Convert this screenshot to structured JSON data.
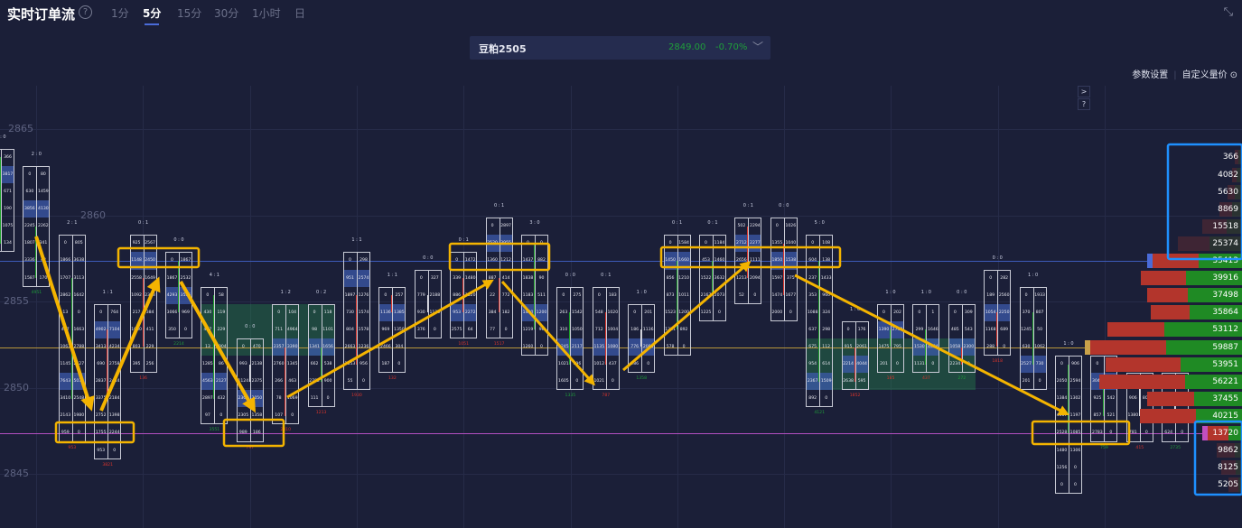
{
  "header": {
    "title": "实时订单流",
    "help": "?",
    "timeframes": [
      "1分",
      "5分",
      "15分",
      "30分",
      "1小时",
      "日"
    ],
    "active_timeframe": "5分",
    "shrink_icon": "shrink-icon"
  },
  "symbol": {
    "name": "豆粕2505",
    "price": "2849.00",
    "change": "-0.70%",
    "chevron": "chevron-down-icon",
    "price_color": "#1f9e3a"
  },
  "links": {
    "settings": "参数设置",
    "custom": "自定义量价",
    "custom_icon": "gear-icon"
  },
  "side_buttons": {
    "expand": ">",
    "help": "?"
  },
  "chart_data": {
    "type": "footprint",
    "y_axis": {
      "labels": [
        2865,
        2860,
        2855,
        2850,
        2845
      ],
      "tick": 1
    },
    "lines": [
      {
        "price": 2857,
        "color": "#3d5bb8"
      },
      {
        "price": 2852,
        "color": "#b8963a"
      },
      {
        "price": 2847,
        "color": "#b24fc0"
      }
    ],
    "zones": [
      {
        "from_candle": 6,
        "to_candle": 9,
        "high": 2854,
        "low": 2852
      },
      {
        "from_candle": 23,
        "to_candle": 27,
        "high": 2852,
        "low": 2850
      }
    ],
    "candles": [
      {
        "h": "0 : 0",
        "high": 2863,
        "cells": [
          "0/366",
          "0/3817",
          "0/671",
          "0/190",
          "0/1075",
          "0/134"
        ],
        "hl": [
          1
        ],
        "body": [
          2863,
          2858
        ],
        "bc": "g",
        "f": "",
        "fc": "g"
      },
      {
        "h": "2 : 0",
        "high": 2862,
        "cells": [
          "0/80",
          "630/1459",
          "3856/4130",
          "2245/2262",
          "1807/341",
          "3336/48",
          "1587/170"
        ],
        "hl": [
          2
        ],
        "body": [
          2859,
          2856
        ],
        "bc": "g",
        "f": "4951",
        "fc": "g"
      },
      {
        "h": "2 : 1",
        "high": 2858,
        "cells": [
          "0/805",
          "1866/3638",
          "1707/3113",
          "2862/1642",
          "13/0",
          "477/1663",
          "1063/2788",
          "1145/2427",
          "7643/5031",
          "3410/2548",
          "2143/1980",
          "959/0"
        ],
        "hl": [
          8
        ],
        "body": [
          2856,
          2849
        ],
        "bc": "g",
        "f": "953",
        "fc": "r"
      },
      {
        "h": "1 : 1",
        "high": 2854,
        "cells": [
          "0/764",
          "4902/7104",
          "3413/4234",
          "690/2758",
          "2837/2444",
          "3375/2184",
          "2752/1398",
          "1755/2244",
          "953/0"
        ],
        "hl": [
          1
        ],
        "body": [
          2853,
          2849
        ],
        "bc": "r",
        "f": "3821",
        "fc": "r"
      },
      {
        "h": "0 : 1",
        "high": 2858,
        "cells": [
          "925/2567",
          "1148/2450",
          "2558/1649",
          "1092/2323",
          "217/384",
          "1060/411",
          "803/229",
          "395/256"
        ],
        "hl": [
          1
        ],
        "body": [
          2856,
          2852
        ],
        "bc": "r",
        "f": "136",
        "fc": "r"
      },
      {
        "h": "0 : 0",
        "high": 2857,
        "cells": [
          "0/1867",
          "1867/2532",
          "4293/3535",
          "3066/969",
          "350/0"
        ],
        "hl": [
          2
        ],
        "body": [
          2857,
          2854
        ],
        "bc": "g",
        "f": "2214",
        "fc": "g"
      },
      {
        "h": "4 : 1",
        "high": 2855,
        "cells": [
          "0/58",
          "430/119",
          "477/229",
          "13/1904",
          "1285/86",
          "4563/2127",
          "2897/432",
          "97/0"
        ],
        "hl": [
          5
        ],
        "body": [
          2855,
          2849
        ],
        "bc": "g",
        "f": "3551",
        "fc": "g"
      },
      {
        "h": "0 : 0",
        "high": 2852,
        "cells": [
          "0/470",
          "993/2138",
          "1124/2375",
          "2361/2050",
          "2305/1358",
          "989/186"
        ],
        "hl": [
          3
        ],
        "body": [
          2851,
          2850
        ],
        "bc": "w",
        "f": "797",
        "fc": "r"
      },
      {
        "h": "1 : 2",
        "high": 2854,
        "cells": [
          "0/104",
          "711/4964",
          "2357/3390",
          "2760/1345",
          "266/463",
          "78/1069",
          "107/0"
        ],
        "hl": [
          2
        ],
        "body": [
          2852,
          2848
        ],
        "bc": "r",
        "f": "2310",
        "fc": "r"
      },
      {
        "h": "0 : 2",
        "high": 2854,
        "cells": [
          "0/118",
          "98/1101",
          "1341/1656",
          "662/538",
          "2782/900",
          "111/0"
        ],
        "hl": [
          2
        ],
        "body": [
          2852,
          2850
        ],
        "bc": "g",
        "f": "1213",
        "fc": "r"
      },
      {
        "h": "1 : 1",
        "high": 2857,
        "cells": [
          "0/298",
          "951/2574",
          "1897/1276",
          "730/1574",
          "804/1578",
          "2663/1236",
          "1553/956",
          "55/0"
        ],
        "hl": [
          1
        ],
        "body": [
          2855,
          2851
        ],
        "bc": "r",
        "f": "1930",
        "fc": "r"
      },
      {
        "h": "1 : 1",
        "high": 2855,
        "cells": [
          "0/257",
          "1136/1385",
          "969/1350",
          "2466/304",
          "187/0"
        ],
        "hl": [
          1
        ],
        "body": [
          2855,
          2854
        ],
        "bc": "r",
        "f": "132",
        "fc": "r"
      },
      {
        "h": "0 : 0",
        "high": 2856,
        "cells": [
          "0/327",
          "779/2188",
          "930/1136",
          "376/0"
        ],
        "hl": [],
        "body": [
          2855,
          2854
        ],
        "bc": "w",
        "f": "",
        "fc": "g"
      },
      {
        "h": "0 : 1",
        "high": 2857,
        "cells": [
          "0/1472",
          "339/1480",
          "886/1520",
          "953/2272",
          "2575/64"
        ],
        "hl": [
          3
        ],
        "body": [
          2856,
          2854
        ],
        "bc": "r",
        "f": "1051",
        "fc": "r"
      },
      {
        "h": "0 : 1",
        "high": 2859,
        "cells": [
          "0/2897",
          "2520/3955",
          "1360/1212",
          "887/414",
          "22/772",
          "384/182",
          "77/0"
        ],
        "hl": [
          1
        ],
        "body": [
          2856,
          2854
        ],
        "bc": "r",
        "f": "1517",
        "fc": "r"
      },
      {
        "h": "3 : 0",
        "high": 2858,
        "cells": [
          "0/0",
          "1437/882",
          "1838/90",
          "1183/511",
          "1430/1200",
          "1219/96",
          "1260/0"
        ],
        "hl": [
          4
        ],
        "body": [
          2858,
          2853
        ],
        "bc": "g",
        "f": "",
        "fc": "g"
      },
      {
        "h": "0 : 0",
        "high": 2855,
        "cells": [
          "0/275",
          "263/1542",
          "310/1050",
          "1245/2117",
          "1021/996",
          "1605/0"
        ],
        "hl": [
          3
        ],
        "body": [
          2854,
          2851
        ],
        "bc": "g",
        "f": "1335",
        "fc": "g"
      },
      {
        "h": "0 : 1",
        "high": 2855,
        "cells": [
          "0/183",
          "548/1020",
          "712/1004",
          "1135/1080",
          "1012/437",
          "1021/0"
        ],
        "hl": [
          3
        ],
        "body": [
          2854,
          2851
        ],
        "bc": "r",
        "f": "787",
        "fc": "r"
      },
      {
        "h": "1 : 0",
        "high": 2854,
        "cells": [
          "0/201",
          "186/1136",
          "776/2080",
          "286/0"
        ],
        "hl": [
          2
        ],
        "body": [
          2853,
          2852
        ],
        "bc": "w",
        "f": "1358",
        "fc": "g"
      },
      {
        "h": "0 : 1",
        "high": 2858,
        "cells": [
          "0/1584",
          "1450/1660",
          "856/1210",
          "873/1011",
          "1523/1200",
          "1221/892",
          "578/0"
        ],
        "hl": [
          1
        ],
        "body": [
          2857,
          2853
        ],
        "bc": "g",
        "f": "",
        "fc": "g"
      },
      {
        "h": "0 : 1",
        "high": 2858,
        "cells": [
          "0/1184",
          "453/1460",
          "1522/3632",
          "2167/2073",
          "1225/0"
        ],
        "hl": [],
        "body": [
          2857,
          2855
        ],
        "bc": "g",
        "f": "",
        "fc": "g"
      },
      {
        "h": "0 : 1",
        "high": 2859,
        "cells": [
          "502/2294",
          "2712/2277",
          "2656/1111",
          "1213/2094",
          "52/0"
        ],
        "hl": [
          1
        ],
        "body": [
          2859,
          2856
        ],
        "bc": "r",
        "f": "",
        "fc": "r"
      },
      {
        "h": "0 : 0",
        "high": 2859,
        "cells": [
          "0/1026",
          "1355/1040",
          "1850/1538",
          "1597/375",
          "1474/1677",
          "2000/0"
        ],
        "hl": [
          2
        ],
        "body": [
          2858,
          2855
        ],
        "bc": "r",
        "f": "",
        "fc": "r"
      },
      {
        "h": "5 : 0",
        "high": 2858,
        "cells": [
          "0/108",
          "604/138",
          "237/1433",
          "353/960",
          "1088/324",
          "637/298",
          "675/112",
          "954/614",
          "2367/1509",
          "892/0"
        ],
        "hl": [
          8
        ],
        "body": [
          2857,
          2850
        ],
        "bc": "g",
        "f": "4121",
        "fc": "g"
      },
      {
        "h": "1 : 0",
        "high": 2853,
        "cells": [
          "0/176",
          "915/2061",
          "2214/4044",
          "2638/595"
        ],
        "hl": [
          2
        ],
        "body": [
          2852,
          2850
        ],
        "bc": "r",
        "f": "1852",
        "fc": "r"
      },
      {
        "h": "1 : 0",
        "high": 2854,
        "cells": [
          "0/202",
          "1390/2759",
          "1475/795",
          "201/0"
        ],
        "hl": [
          1
        ],
        "body": [
          2853,
          2852
        ],
        "bc": "g",
        "f": "185",
        "fc": "r"
      },
      {
        "h": "1 : 0",
        "high": 2854,
        "cells": [
          "0/1",
          "299/1646",
          "1530/4434",
          "1131/0"
        ],
        "hl": [
          2
        ],
        "body": [
          2853,
          2851
        ],
        "bc": "g",
        "f": "437",
        "fc": "r"
      },
      {
        "h": "0 : 0",
        "high": 2854,
        "cells": [
          "0/309",
          "485/543",
          "1058/2300",
          "2234/0"
        ],
        "hl": [
          2
        ],
        "body": [
          2852,
          2851
        ],
        "bc": "r",
        "f": "272",
        "fc": "g"
      },
      {
        "h": "0 : 0",
        "high": 2856,
        "cells": [
          "0/282",
          "189/2560",
          "1054/2250",
          "1168/689",
          "288/0"
        ],
        "hl": [
          2
        ],
        "body": [
          2854,
          2852
        ],
        "bc": "r",
        "f": "1818",
        "fc": "r"
      },
      {
        "h": "1 : 0",
        "high": 2855,
        "cells": [
          "0/1933",
          "370/807",
          "1245/50",
          "630/1062",
          "2527/730",
          "201/0"
        ],
        "hl": [
          4
        ],
        "body": [
          2854,
          2851
        ],
        "bc": "g",
        "f": "",
        "fc": "g"
      },
      {
        "h": "1 : 0",
        "high": 2851,
        "cells": [
          "0/906",
          "2050/2594",
          "1384/1302",
          "4067/1197",
          "2528/1085",
          "1480/1306",
          "1256/0",
          "0/0"
        ],
        "hl": [],
        "body": [
          2851,
          2847
        ],
        "bc": "g",
        "f": "",
        "fc": "g"
      },
      {
        "h": "",
        "high": 2851,
        "cells": [
          "0/98",
          "3040/1185",
          "925/542",
          "857/521",
          "2783/0"
        ],
        "hl": [
          1
        ],
        "body": [
          2850,
          2848
        ],
        "bc": "g",
        "f": "759",
        "fc": "g"
      },
      {
        "h": "",
        "high": 2850,
        "cells": [
          "0/0",
          "906/807",
          "1380/807",
          "781/0"
        ],
        "hl": [],
        "body": [
          2850,
          2848
        ],
        "bc": "w",
        "f": "415",
        "fc": "r"
      },
      {
        "h": "",
        "high": 2850,
        "cells": [
          "0/0",
          "",
          "",
          "624/0"
        ],
        "hl": [],
        "body": [
          2849,
          2848
        ],
        "bc": "w",
        "f": "2735",
        "fc": "g"
      }
    ],
    "volume_profile": [
      {
        "price": 2863,
        "total": 366,
        "buy": 0.5,
        "faded": true
      },
      {
        "price": 2862,
        "total": 4082,
        "buy": 0.5,
        "faded": true
      },
      {
        "price": 2861,
        "total": 5630,
        "buy": 0.5,
        "faded": true
      },
      {
        "price": 2860,
        "total": 8869,
        "buy": 0.45,
        "faded": true
      },
      {
        "price": 2859,
        "total": 15518,
        "buy": 0.4,
        "faded": true
      },
      {
        "price": 2858,
        "total": 25374,
        "buy": 0.5,
        "faded": true
      },
      {
        "price": 2857,
        "total": 35413,
        "buy": 0.48,
        "faded": false,
        "marker": "#4a6bd8"
      },
      {
        "price": 2856,
        "total": 39916,
        "buy": 0.55,
        "faded": false
      },
      {
        "price": 2855,
        "total": 37498,
        "buy": 0.57,
        "faded": false
      },
      {
        "price": 2854,
        "total": 35864,
        "buy": 0.58,
        "faded": false
      },
      {
        "price": 2853,
        "total": 53112,
        "buy": 0.58,
        "faded": false
      },
      {
        "price": 2852,
        "total": 59887,
        "buy": 0.5,
        "faded": false,
        "marker": "#c9a24a"
      },
      {
        "price": 2851,
        "total": 53951,
        "buy": 0.45,
        "faded": false
      },
      {
        "price": 2850,
        "total": 56221,
        "buy": 0.4,
        "faded": false
      },
      {
        "price": 2849,
        "total": 37455,
        "buy": 0.5,
        "faded": false
      },
      {
        "price": 2848,
        "total": 40215,
        "buy": 0.45,
        "faded": false
      },
      {
        "price": 2847,
        "total": 13720,
        "buy": 0.4,
        "faded": false,
        "marker": "#c04fc0"
      },
      {
        "price": 2846,
        "total": 9862,
        "buy": 0.3,
        "faded": true
      },
      {
        "price": 2845,
        "total": 8125,
        "buy": 0.3,
        "faded": true
      },
      {
        "price": 2844,
        "total": 5205,
        "buy": 0.3,
        "faded": true
      }
    ],
    "colors": {
      "background": "#1b1f38",
      "buy": "#1f8a24",
      "sell": "#b3352c",
      "highlight": "#324a86",
      "annotation": "#f4b400",
      "annotation_box_blue": "#1e90ff"
    }
  }
}
